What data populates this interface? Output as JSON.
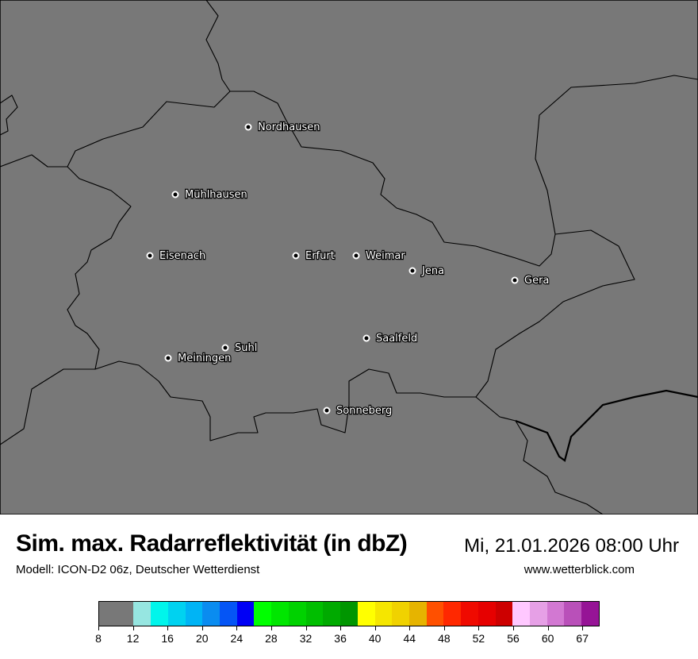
{
  "header": {
    "title": "Sim. max. Radarreflektivität (in dbZ)",
    "datetime": "Mi, 21.01.2026 08:00 Uhr",
    "model": "Modell: ICON-D2 06z, Deutscher Wetterdienst",
    "website": "www.wetterblick.com"
  },
  "map": {
    "background_color": "#787878",
    "cities": [
      {
        "name": "Nordhausen"
      },
      {
        "name": "Mühlhausen"
      },
      {
        "name": "Eisenach"
      },
      {
        "name": "Erfurt"
      },
      {
        "name": "Weimar"
      },
      {
        "name": "Jena"
      },
      {
        "name": "Gera"
      },
      {
        "name": "Saalfeld"
      },
      {
        "name": "Suhl"
      },
      {
        "name": "Meiningen"
      },
      {
        "name": "Sonneberg"
      }
    ]
  },
  "colorbar": {
    "unit": "dBZ",
    "tick_labels": [
      "8",
      "12",
      "16",
      "20",
      "24",
      "28",
      "32",
      "36",
      "40",
      "44",
      "48",
      "52",
      "56",
      "60",
      "67"
    ],
    "colors": [
      "#787878",
      "#787878",
      "#96e6e1",
      "#00f5eb",
      "#00d2f0",
      "#00b4f5",
      "#0a8cf0",
      "#0555f5",
      "#0000f5",
      "#00ff00",
      "#00e600",
      "#00d200",
      "#00be00",
      "#00aa00",
      "#009600",
      "#ffff00",
      "#f5e600",
      "#f0d200",
      "#e6b400",
      "#ff5000",
      "#ff2800",
      "#f00a00",
      "#e60000",
      "#cd0000",
      "#ffc8ff",
      "#e6a0e6",
      "#d278d2",
      "#b950b9",
      "#961496"
    ]
  }
}
